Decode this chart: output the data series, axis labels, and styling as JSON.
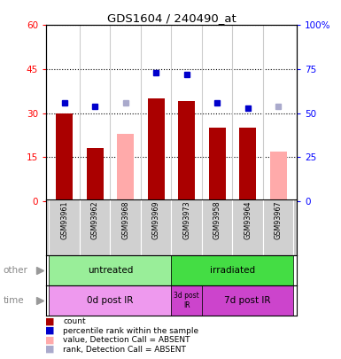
{
  "title": "GDS1604 / 240490_at",
  "samples": [
    "GSM93961",
    "GSM93962",
    "GSM93968",
    "GSM93969",
    "GSM93973",
    "GSM93958",
    "GSM93964",
    "GSM93967"
  ],
  "count_values": [
    30,
    18,
    null,
    35,
    34,
    25,
    25,
    null
  ],
  "count_absent": [
    null,
    null,
    23,
    null,
    null,
    null,
    null,
    17
  ],
  "rank_values": [
    56,
    54,
    null,
    73,
    72,
    56,
    53,
    null
  ],
  "rank_absent": [
    null,
    null,
    56,
    null,
    null,
    null,
    null,
    54
  ],
  "ylim_left": [
    0,
    60
  ],
  "ylim_right": [
    0,
    100
  ],
  "yticks_left": [
    0,
    15,
    30,
    45,
    60
  ],
  "yticks_right": [
    0,
    25,
    50,
    75,
    100
  ],
  "ytick_labels_left": [
    "0",
    "15",
    "30",
    "45",
    "60"
  ],
  "ytick_labels_right": [
    "0",
    "25",
    "50",
    "75",
    "100%"
  ],
  "bar_width": 0.55,
  "bar_color_present": "#aa0000",
  "bar_color_absent": "#ffaaaa",
  "dot_color_present": "#0000cc",
  "dot_color_absent": "#aaaacc",
  "bg_plot": "#ffffff",
  "bg_label": "#cccccc",
  "bg_fig": "#ffffff",
  "color_green_light": "#99ee99",
  "color_green_dark": "#44dd44",
  "color_pink_light": "#ee99ee",
  "color_pink_dark": "#cc44cc",
  "legend_items": [
    {
      "label": "count",
      "color": "#aa0000"
    },
    {
      "label": "percentile rank within the sample",
      "color": "#0000cc"
    },
    {
      "label": "value, Detection Call = ABSENT",
      "color": "#ffaaaa"
    },
    {
      "label": "rank, Detection Call = ABSENT",
      "color": "#aaaacc"
    }
  ]
}
